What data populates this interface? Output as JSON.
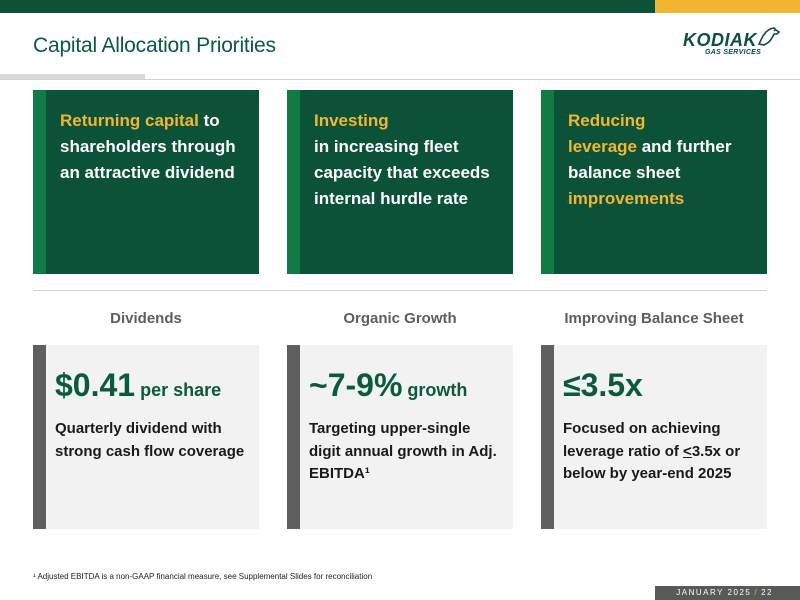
{
  "title": "Capital Allocation Priorities",
  "logo": {
    "brand": "KODIAK",
    "sub": "GAS SERVICES"
  },
  "colors": {
    "dark_green": "#0b5239",
    "accent_green": "#127a45",
    "gold": "#f2b632",
    "grey_bar": "#5f5f5f",
    "box_bg": "#f2f2f2"
  },
  "cards": [
    {
      "a": "Returning capital",
      "b": " to shareholders through an attractive dividend"
    },
    {
      "a": "Investing",
      "b": "in increasing fleet capacity that exceeds internal hurdle rate"
    },
    {
      "a": "Reducing",
      "b": "leverage",
      "c": " and further balance sheet ",
      "d": "improvements"
    }
  ],
  "columns": [
    {
      "heading": "Dividends",
      "metric_big": "$0.41",
      "metric_small": " per share",
      "desc": "Quarterly dividend with strong cash flow coverage"
    },
    {
      "heading": "Organic Growth",
      "metric_big": "~7-9%",
      "metric_small": " growth",
      "desc": "Targeting upper-single digit annual growth in Adj. EBITDA¹"
    },
    {
      "heading": "Improving Balance Sheet",
      "metric_big": "≤3.5x",
      "desc_a": "Focused on achieving leverage ratio of ",
      "desc_u": "<",
      "desc_b": "3.5x or below by year-end 2025"
    }
  ],
  "footnote": "¹ Adjusted EBITDA is a non-GAAP financial measure, see Supplemental Slides for reconciliation",
  "footer": {
    "date": "JANUARY 2025",
    "sep": "/",
    "page": "22"
  }
}
